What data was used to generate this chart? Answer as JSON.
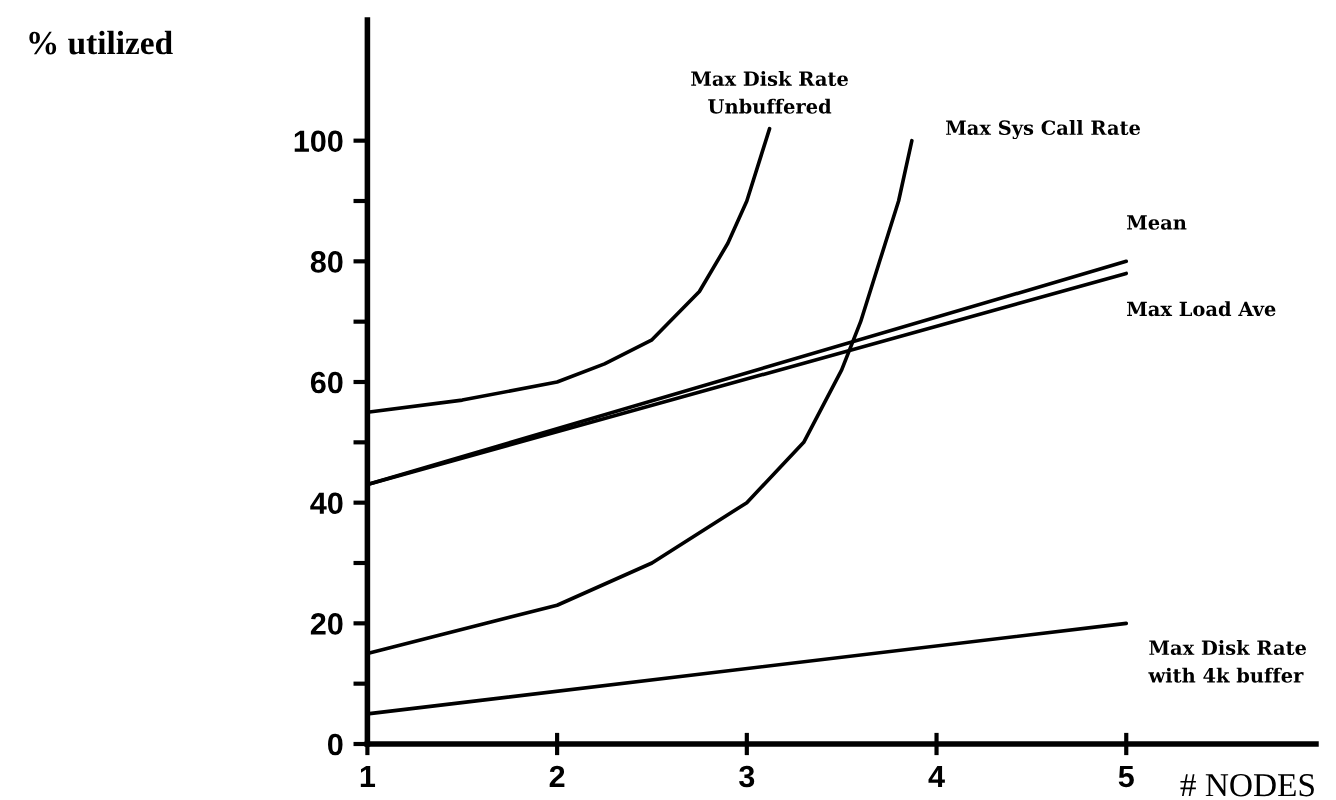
{
  "chart_data": {
    "type": "line",
    "xlabel": "# NODES",
    "ylabel": "% utilized",
    "xlim": [
      1,
      6
    ],
    "ylim": [
      0,
      120
    ],
    "xticks": [
      1,
      2,
      3,
      4,
      5
    ],
    "yticks": [
      0,
      {
        "value": 10,
        "label": null
      },
      20,
      {
        "value": 30,
        "label": null
      },
      40,
      {
        "value": 50,
        "label": null
      },
      60,
      {
        "value": 70,
        "label": null
      },
      80,
      {
        "value": 90,
        "label": null
      },
      100
    ],
    "grid": false,
    "legend": false,
    "marker": "none",
    "line_style": "solid",
    "series": [
      {
        "name": "Max Disk Rate\nUnbuffered",
        "color": "#000000",
        "x": [
          1,
          1.5,
          2,
          2.25,
          2.5,
          2.75,
          2.9,
          3,
          3.12
        ],
        "values": [
          55,
          57,
          60,
          63,
          67,
          75,
          83,
          90,
          102
        ]
      },
      {
        "name": "Max Sys Call Rate",
        "color": "#000000",
        "x": [
          1,
          2,
          2.5,
          3,
          3.15,
          3.3,
          3.5,
          3.6,
          3.7,
          3.8,
          3.87
        ],
        "values": [
          15,
          23,
          30,
          40,
          45,
          50,
          62,
          70,
          80,
          90,
          100
        ]
      },
      {
        "name": "Mean",
        "color": "#000000",
        "x": [
          1,
          5
        ],
        "values": [
          43,
          80
        ]
      },
      {
        "name": "Max Load Ave",
        "color": "#000000",
        "x": [
          1,
          5
        ],
        "values": [
          43,
          78
        ]
      },
      {
        "name": "Max Disk Rate\nwith 4k buffer",
        "color": "#000000",
        "x": [
          1,
          5
        ],
        "values": [
          5,
          20
        ]
      }
    ]
  }
}
